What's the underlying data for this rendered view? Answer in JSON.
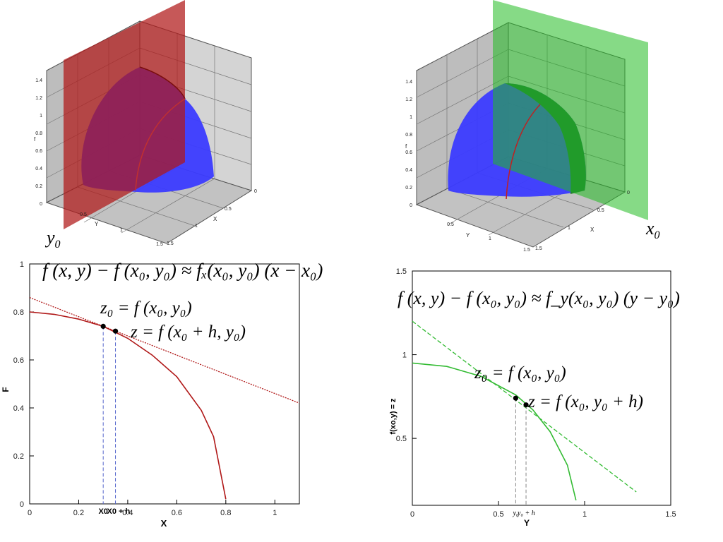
{
  "top_left": {
    "axes": {
      "f_label": "f",
      "x_label": "X",
      "y_label": "Y"
    },
    "f_ticks": [
      "1.4",
      "1.2",
      "1",
      "0.8",
      "0.6",
      "0.4",
      "0.2",
      "0"
    ],
    "x_ticks": [
      "0",
      "0.5",
      "1",
      "1.5"
    ],
    "y_ticks": [
      "0.5",
      "1",
      "1.5"
    ],
    "plane_label": "y",
    "plane_label_sub": "0",
    "plane_color": "#b01818",
    "surface_color": "#3b3bff"
  },
  "top_right": {
    "axes": {
      "f_label": "f",
      "x_label": "X",
      "y_label": "Y"
    },
    "f_ticks": [
      "1.4",
      "1.2",
      "1",
      "0.8",
      "0.6",
      "0.4",
      "0.2",
      "0"
    ],
    "x_ticks": [
      "0",
      "0.5",
      "1",
      "1.5"
    ],
    "y_ticks": [
      "0.5",
      "1",
      "1.5"
    ],
    "plane_label": "x",
    "plane_label_sub": "0",
    "plane_color": "#22bb22",
    "surface_color": "#3b3bff"
  },
  "bottom_left": {
    "formula_main": "f (x, y) − f (x₀, y₀) ≈ fₓ(x₀, y₀) (x − x₀)",
    "point1_label": "z₀ = f (x₀, y₀)",
    "point2_label": "z = f (x₀ + h, y₀)",
    "ylabel": "F",
    "xlabel": "X",
    "xtick_labels": [
      "0",
      "0.2",
      "0.4",
      "0.6",
      "0.8",
      "1"
    ],
    "ytick_labels": [
      "0",
      "0.2",
      "0.4",
      "0.6",
      "0.8",
      "1"
    ],
    "x0_label": "X0",
    "x0h_label": "X0 + h",
    "curve_color": "#b01818"
  },
  "bottom_right": {
    "formula_main": "f (x, y) − f (x₀, y₀) ≈ f_y(x₀, y₀) (y − y₀)",
    "point1_label": "z₀ = f (x₀, y₀)",
    "point2_label": "z = f (x₀, y₀ + h)",
    "ylabel": "f(xo,y) = z",
    "xlabel": "Y",
    "xtick_labels": [
      "0",
      "0.5",
      "1",
      "1.5"
    ],
    "ytick_labels": [
      "0.5",
      "1",
      "1.5"
    ],
    "y0_label": "y₀",
    "y0h_label": "y₀ + h",
    "curve_color": "#33bb33"
  },
  "chart_data": [
    {
      "type": "line",
      "title": "",
      "xlabel": "X",
      "ylabel": "F",
      "xlim": [
        0,
        1.1
      ],
      "ylim": [
        0,
        1
      ],
      "series": [
        {
          "name": "",
          "x": [
            0,
            0.1,
            0.2,
            0.3,
            0.4,
            0.5,
            0.6,
            0.7,
            0.75,
            0.8
          ],
          "y": [
            0.8,
            0.79,
            0.77,
            0.74,
            0.69,
            0.62,
            0.53,
            0.39,
            0.28,
            0.02
          ]
        },
        {
          "name": "",
          "x": [
            0,
            1.1
          ],
          "y": [
            0.86,
            0.42
          ]
        }
      ],
      "points": [
        {
          "x": 0.3,
          "y": 0.74
        },
        {
          "x": 0.35,
          "y": 0.72
        }
      ]
    },
    {
      "type": "line",
      "title": "",
      "xlabel": "Y",
      "ylabel": "f(xo,y) = z",
      "xlim": [
        0,
        1.5
      ],
      "ylim": [
        0.1,
        1.5
      ],
      "series": [
        {
          "name": "",
          "x": [
            0,
            0.2,
            0.4,
            0.6,
            0.7,
            0.8,
            0.9,
            0.95
          ],
          "y": [
            0.95,
            0.93,
            0.87,
            0.76,
            0.67,
            0.54,
            0.34,
            0.13
          ]
        },
        {
          "name": "",
          "x": [
            0,
            1.3
          ],
          "y": [
            1.2,
            0.18
          ]
        }
      ],
      "points": [
        {
          "x": 0.6,
          "y": 0.74
        },
        {
          "x": 0.66,
          "y": 0.7
        }
      ]
    }
  ]
}
